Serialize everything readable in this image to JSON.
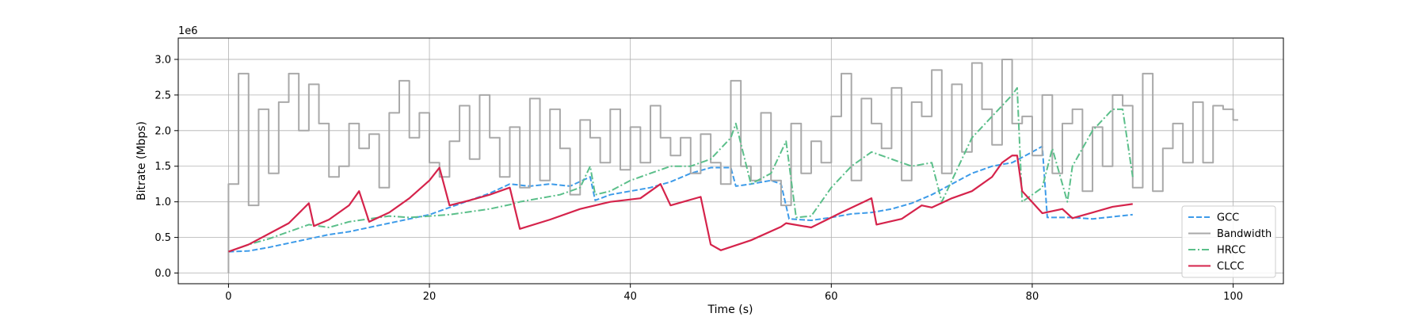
{
  "chart_data": {
    "type": "line",
    "xlabel": "Time (s)",
    "ylabel": "Bitrate (Mbps)",
    "y_offset_label": "1e6",
    "xlim": [
      -5,
      105
    ],
    "ylim": [
      -150000,
      3300000
    ],
    "x_ticks": [
      0,
      20,
      40,
      60,
      80,
      100
    ],
    "x_tick_labels": [
      "0",
      "20",
      "40",
      "60",
      "80",
      "100"
    ],
    "y_ticks": [
      0,
      500000,
      1000000,
      1500000,
      2000000,
      2500000,
      3000000
    ],
    "y_tick_labels": [
      "0.0",
      "0.5",
      "1.0",
      "1.5",
      "2.0",
      "2.5",
      "3.0"
    ],
    "grid": true,
    "legend_position": "lower-right",
    "series": [
      {
        "name": "GCC",
        "color": "#3d9be9",
        "dash": "dashed",
        "x": [
          0,
          2,
          4,
          6,
          8,
          10,
          12,
          14,
          16,
          18,
          20,
          22,
          24,
          26,
          28,
          30,
          32,
          34,
          36,
          36.5,
          38,
          40,
          42,
          44,
          46,
          48,
          50,
          50.5,
          52,
          54,
          55,
          55.8,
          58,
          60,
          62,
          64,
          66,
          68,
          70,
          72,
          74,
          76,
          78,
          80,
          81,
          81.5,
          84,
          86,
          88,
          90
        ],
        "y": [
          300000,
          310000,
          360000,
          420000,
          480000,
          540000,
          580000,
          640000,
          700000,
          760000,
          820000,
          920000,
          1020000,
          1120000,
          1250000,
          1220000,
          1250000,
          1220000,
          1350000,
          1020000,
          1100000,
          1150000,
          1200000,
          1280000,
          1400000,
          1480000,
          1480000,
          1220000,
          1250000,
          1300000,
          1250000,
          760000,
          740000,
          780000,
          830000,
          850000,
          900000,
          980000,
          1100000,
          1250000,
          1400000,
          1500000,
          1550000,
          1700000,
          1780000,
          780000,
          780000,
          760000,
          790000,
          820000
        ]
      },
      {
        "name": "Bandwidth",
        "color": "#a9a9a9",
        "dash": "solid",
        "x": [
          0,
          1,
          2,
          3,
          4,
          5,
          6,
          7,
          8,
          9,
          10,
          11,
          12,
          13,
          14,
          15,
          16,
          17,
          18,
          19,
          20,
          21,
          22,
          23,
          24,
          25,
          26,
          27,
          28,
          29,
          30,
          31,
          32,
          33,
          34,
          35,
          36,
          37,
          38,
          39,
          40,
          41,
          42,
          43,
          44,
          45,
          46,
          47,
          48,
          49,
          50,
          51,
          52,
          53,
          54,
          55,
          56,
          57,
          58,
          59,
          60,
          61,
          62,
          63,
          64,
          65,
          66,
          67,
          68,
          69,
          70,
          71,
          72,
          73,
          74,
          75,
          76,
          77,
          78,
          79,
          80,
          81,
          82,
          83,
          84,
          85,
          86,
          87,
          88,
          89,
          90,
          91,
          92,
          93,
          94,
          95,
          96,
          97,
          98,
          99,
          100
        ],
        "y": [
          1250000,
          2800000,
          950000,
          2300000,
          1400000,
          2400000,
          2800000,
          2000000,
          2650000,
          2100000,
          1350000,
          1500000,
          2100000,
          1750000,
          1950000,
          1200000,
          2250000,
          2700000,
          1900000,
          2250000,
          1550000,
          1350000,
          1850000,
          2350000,
          1600000,
          2500000,
          1900000,
          1350000,
          2050000,
          1200000,
          2450000,
          1300000,
          2300000,
          1750000,
          1100000,
          2150000,
          1900000,
          1550000,
          2300000,
          1450000,
          2050000,
          1550000,
          2350000,
          1900000,
          1650000,
          1900000,
          1400000,
          1950000,
          1550000,
          1250000,
          2700000,
          1500000,
          1300000,
          2250000,
          1300000,
          950000,
          2100000,
          1400000,
          1850000,
          1550000,
          2200000,
          2800000,
          1300000,
          2450000,
          2100000,
          1750000,
          2600000,
          1300000,
          2400000,
          2200000,
          2850000,
          1400000,
          2650000,
          1700000,
          2950000,
          2300000,
          1800000,
          3000000,
          2100000,
          2200000,
          1650000,
          2500000,
          1400000,
          2100000,
          2300000,
          1150000,
          2050000,
          1500000,
          2500000,
          2350000,
          1200000,
          2800000,
          1150000,
          1750000,
          2100000,
          1550000,
          2400000,
          1550000,
          2350000,
          2300000,
          2150000
        ]
      },
      {
        "name": "HRCC",
        "color": "#5bbf8a",
        "dash": "dashdot",
        "x": [
          0,
          2,
          4,
          6,
          8,
          10,
          12,
          14,
          16,
          18,
          20,
          22,
          24,
          26,
          28,
          29,
          31,
          33,
          35,
          36,
          36.5,
          38,
          40,
          42,
          44,
          46,
          48,
          50,
          50.5,
          52,
          54,
          55.5,
          56.5,
          58,
          60,
          62,
          64,
          66,
          68,
          70,
          71,
          72,
          74,
          76,
          78,
          78.5,
          79,
          81,
          82,
          83.5,
          84,
          86,
          88,
          89,
          90
        ],
        "y": [
          300000,
          400000,
          480000,
          580000,
          680000,
          640000,
          720000,
          760000,
          800000,
          780000,
          800000,
          820000,
          860000,
          900000,
          960000,
          1000000,
          1050000,
          1100000,
          1200000,
          1500000,
          1100000,
          1150000,
          1300000,
          1400000,
          1500000,
          1500000,
          1600000,
          1900000,
          2100000,
          1250000,
          1400000,
          1850000,
          780000,
          800000,
          1200000,
          1500000,
          1700000,
          1600000,
          1500000,
          1550000,
          1000000,
          1300000,
          1900000,
          2200000,
          2500000,
          2600000,
          1000000,
          1200000,
          1750000,
          1000000,
          1500000,
          2000000,
          2300000,
          2300000,
          1350000
        ]
      },
      {
        "name": "CLCC",
        "color": "#d5234b",
        "dash": "solid",
        "x": [
          0,
          2,
          4,
          6,
          8,
          8.5,
          10,
          12,
          13,
          14,
          16,
          18,
          20,
          21,
          22,
          24,
          26,
          28,
          29,
          32,
          35,
          38,
          41,
          43,
          44,
          47,
          48,
          49,
          52,
          55,
          55.5,
          58,
          61,
          64,
          64.5,
          67,
          69,
          70,
          72,
          74,
          76,
          77,
          78,
          78.5,
          79,
          81,
          83,
          84,
          86,
          88,
          90
        ],
        "y": [
          300000,
          400000,
          550000,
          700000,
          980000,
          660000,
          750000,
          950000,
          1150000,
          720000,
          850000,
          1050000,
          1300000,
          1480000,
          950000,
          1020000,
          1100000,
          1200000,
          620000,
          750000,
          900000,
          1000000,
          1050000,
          1250000,
          950000,
          1070000,
          400000,
          320000,
          460000,
          650000,
          700000,
          640000,
          850000,
          1050000,
          680000,
          760000,
          950000,
          920000,
          1050000,
          1150000,
          1350000,
          1550000,
          1650000,
          1650000,
          1150000,
          840000,
          900000,
          770000,
          850000,
          930000,
          970000
        ]
      }
    ]
  }
}
